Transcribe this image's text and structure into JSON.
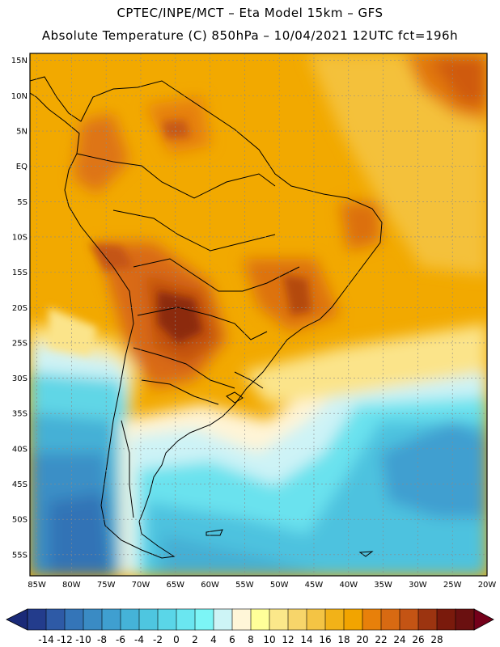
{
  "header": {
    "line1": "CPTEC/INPE/MCT –  Eta Model 15km – GFS",
    "line2": "Absolute Temperature (C) 850hPa – 10/04/2021 12UTC fct=196h"
  },
  "map": {
    "lat_labels": [
      "15N",
      "10N",
      "5N",
      "EQ",
      "5S",
      "10S",
      "15S",
      "20S",
      "25S",
      "30S",
      "35S",
      "40S",
      "45S",
      "50S",
      "55S"
    ],
    "lon_labels": [
      "85W",
      "80W",
      "75W",
      "70W",
      "65W",
      "60W",
      "55W",
      "50W",
      "45W",
      "40W",
      "35W",
      "30W",
      "25W",
      "20W"
    ],
    "lat_range": [
      16,
      -58
    ],
    "lon_range": [
      -86,
      -20
    ],
    "lat_ticks": [
      15,
      10,
      5,
      0,
      -5,
      -10,
      -15,
      -20,
      -25,
      -30,
      -35,
      -40,
      -45,
      -50,
      -55
    ],
    "lon_ticks": [
      -85,
      -80,
      -75,
      -70,
      -65,
      -60,
      -55,
      -50,
      -45,
      -40,
      -35,
      -30,
      -25,
      -20
    ]
  },
  "colorbar": {
    "labels": [
      "-14",
      "-12",
      "-10",
      "-8",
      "-6",
      "-4",
      "-2",
      "0",
      "2",
      "4",
      "6",
      "8",
      "10",
      "12",
      "14",
      "16",
      "18",
      "20",
      "22",
      "24",
      "26",
      "28"
    ],
    "colors": [
      "#233c8c",
      "#2e5aa6",
      "#3475b8",
      "#3a8bc4",
      "#3f9fd0",
      "#45b3d8",
      "#4ec6e0",
      "#5ad6e8",
      "#6ae6f0",
      "#7cf5f6",
      "#cdf4f6",
      "#fff6d8",
      "#ffff99",
      "#fbe88a",
      "#f7d56a",
      "#f4c444",
      "#f2b218",
      "#f2a400",
      "#e8800a",
      "#d86a12",
      "#c45414",
      "#9c3410",
      "#7a1a0c",
      "#6a1010"
    ],
    "low_color": "#1a2a78",
    "high_color": "#74001a"
  }
}
